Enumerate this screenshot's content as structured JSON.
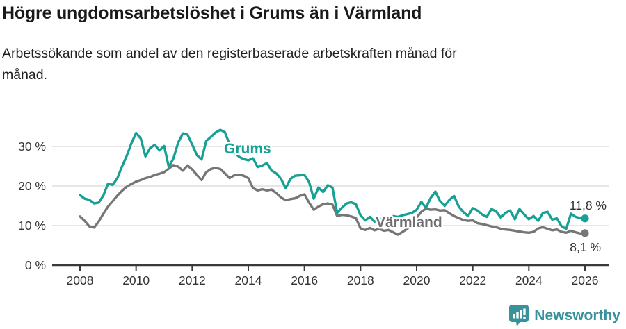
{
  "header": {
    "title": "Högre ungdomsarbetslöshet i Grums än i Värmland",
    "subtitle_line1": "Arbetssökande som andel av den registerbaserade arbetskraften månad för",
    "subtitle_line2": "månad."
  },
  "footer": {
    "brand": "Newsworthy",
    "logo_icon": "speech-bubble-with-bar-chart-and-exclamation"
  },
  "colors": {
    "grums_line": "#17a093",
    "varmland_line": "#767676",
    "varmland_label": "#6e6e6e",
    "axis": "#3a3a3a",
    "grid": "#dedede",
    "tick_text": "#333333",
    "value_text": "#2e2e2e",
    "brand": "#37929b",
    "background": "#ffffff"
  },
  "chart_data": {
    "type": "line",
    "title": "Högre ungdomsarbetslöshet i Grums än i Värmland",
    "subtitle": "Arbetssökande som andel av den registerbaserade arbetskraften månad för månad.",
    "xlabel": "",
    "ylabel": "",
    "grid": true,
    "legend": "inline-series-labels",
    "x_start": 2008,
    "x_step_years": 0.166667,
    "xlim": [
      2007,
      2026.9
    ],
    "ylim": [
      0,
      35
    ],
    "x_ticks": [
      2008,
      2010,
      2012,
      2014,
      2016,
      2018,
      2020,
      2022,
      2024,
      2026
    ],
    "y_ticks": [
      {
        "label": "0 %",
        "value": 0
      },
      {
        "label": "10 %",
        "value": 10
      },
      {
        "label": "20 %",
        "value": 20
      },
      {
        "label": "30 %",
        "value": 30
      }
    ],
    "series": [
      {
        "name": "Grums",
        "color": "#17a093",
        "end_label": "11,8 %",
        "end_value": 11.8,
        "values": [
          17.7,
          16.8,
          16.5,
          15.6,
          15.8,
          17.6,
          20.6,
          20.3,
          22.0,
          25.0,
          27.6,
          30.8,
          33.4,
          32.0,
          27.5,
          29.6,
          30.4,
          29.0,
          30.1,
          24.8,
          27.0,
          31.0,
          33.3,
          33.0,
          30.5,
          27.8,
          26.7,
          31.4,
          32.4,
          33.5,
          34.2,
          33.6,
          30.5,
          28.5,
          27.4,
          26.8,
          26.5,
          27.0,
          24.8,
          25.2,
          25.8,
          23.9,
          23.2,
          21.8,
          19.4,
          21.8,
          22.6,
          22.7,
          22.8,
          21.0,
          16.8,
          19.6,
          18.5,
          20.2,
          19.6,
          13.2,
          14.5,
          15.6,
          15.9,
          15.4,
          12.6,
          11.3,
          12.2,
          11.0,
          11.8,
          11.4,
          12.0,
          12.4,
          12.2,
          12.6,
          12.9,
          13.2,
          14.0,
          16.0,
          14.5,
          17.0,
          18.6,
          16.2,
          15.0,
          16.5,
          17.5,
          14.8,
          13.4,
          12.4,
          14.4,
          13.8,
          12.8,
          12.2,
          14.2,
          13.6,
          12.0,
          13.2,
          13.8,
          11.6,
          14.2,
          12.8,
          11.6,
          12.4,
          11.2,
          13.2,
          13.5,
          11.5,
          11.8,
          9.8,
          9.2,
          13.0,
          12.2,
          11.9,
          11.8
        ]
      },
      {
        "name": "Värmland",
        "color": "#767676",
        "end_label": "8,1 %",
        "end_value": 8.1,
        "values": [
          12.3,
          11.2,
          9.8,
          9.5,
          11.0,
          13.0,
          14.8,
          16.2,
          17.6,
          18.8,
          19.8,
          20.5,
          21.1,
          21.5,
          22.0,
          22.3,
          22.8,
          23.1,
          23.5,
          24.4,
          25.3,
          24.9,
          23.9,
          25.2,
          24.2,
          22.8,
          21.5,
          23.5,
          24.3,
          24.6,
          24.3,
          23.2,
          22.0,
          22.7,
          22.9,
          22.6,
          22.0,
          19.5,
          18.9,
          19.2,
          18.9,
          19.1,
          18.2,
          17.1,
          16.4,
          16.7,
          16.9,
          17.5,
          17.9,
          15.8,
          14.0,
          14.8,
          15.4,
          15.6,
          15.3,
          12.4,
          12.7,
          12.6,
          12.3,
          11.9,
          9.3,
          8.9,
          9.4,
          8.8,
          9.2,
          8.7,
          8.9,
          8.3,
          7.7,
          8.4,
          9.2,
          10.5,
          12.0,
          13.5,
          14.3,
          14.0,
          14.1,
          13.8,
          13.9,
          13.1,
          12.4,
          11.9,
          11.4,
          11.2,
          11.3,
          10.6,
          10.4,
          10.1,
          9.8,
          9.6,
          9.2,
          9.0,
          8.9,
          8.7,
          8.5,
          8.3,
          8.2,
          8.4,
          9.3,
          9.6,
          9.2,
          8.8,
          9.0,
          8.4,
          8.2,
          8.7,
          8.3,
          8.0,
          8.1
        ]
      }
    ]
  }
}
